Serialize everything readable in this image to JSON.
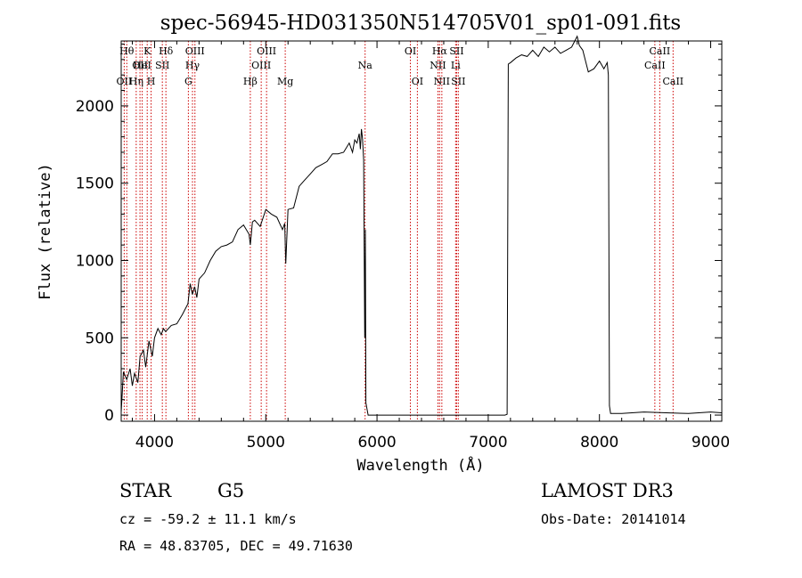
{
  "chart_data": {
    "type": "line",
    "title": "spec-56945-HD031350N514705V01_sp01-091.fits",
    "xlabel": "Wavelength (Å)",
    "ylabel": "Flux (relative)",
    "xlim": [
      3700,
      9100
    ],
    "ylim": [
      -40,
      2420
    ],
    "xticks": [
      4000,
      5000,
      6000,
      7000,
      8000,
      9000
    ],
    "yticks": [
      0,
      500,
      1000,
      1500,
      2000
    ],
    "grid": false,
    "line_color": "#cc0000",
    "series": [
      {
        "name": "flux",
        "x": [
          3700,
          3720,
          3750,
          3780,
          3800,
          3820,
          3850,
          3870,
          3900,
          3920,
          3950,
          3980,
          4000,
          4030,
          4060,
          4080,
          4100,
          4150,
          4200,
          4250,
          4300,
          4320,
          4340,
          4360,
          4380,
          4400,
          4450,
          4500,
          4550,
          4600,
          4650,
          4700,
          4750,
          4800,
          4850,
          4861,
          4880,
          4900,
          4950,
          5000,
          5050,
          5100,
          5150,
          5170,
          5180,
          5200,
          5250,
          5300,
          5350,
          5400,
          5450,
          5500,
          5550,
          5600,
          5650,
          5700,
          5750,
          5780,
          5800,
          5820,
          5840,
          5850,
          5860,
          5870,
          5880,
          5890,
          5895,
          5900,
          5920,
          5950,
          6000,
          6200,
          6500,
          6800,
          7000,
          7100,
          7150,
          7170,
          7180,
          7200,
          7250,
          7300,
          7350,
          7400,
          7450,
          7500,
          7550,
          7600,
          7650,
          7700,
          7750,
          7800,
          7820,
          7850,
          7900,
          7950,
          8000,
          8040,
          8070,
          8080,
          8090,
          8100,
          8200,
          8400,
          8600,
          8800,
          9000,
          9100
        ],
        "y": [
          20,
          280,
          230,
          300,
          190,
          270,
          210,
          380,
          420,
          310,
          480,
          380,
          500,
          560,
          520,
          560,
          540,
          580,
          590,
          650,
          720,
          850,
          780,
          830,
          760,
          880,
          920,
          1000,
          1060,
          1090,
          1100,
          1120,
          1200,
          1230,
          1170,
          1100,
          1250,
          1260,
          1220,
          1330,
          1300,
          1280,
          1200,
          1240,
          980,
          1330,
          1340,
          1480,
          1520,
          1560,
          1600,
          1620,
          1640,
          1690,
          1690,
          1700,
          1760,
          1700,
          1780,
          1760,
          1820,
          1720,
          1850,
          1790,
          1650,
          500,
          1200,
          80,
          0,
          0,
          0,
          0,
          0,
          0,
          0,
          0,
          0,
          5,
          2270,
          2280,
          2310,
          2330,
          2320,
          2360,
          2320,
          2380,
          2350,
          2380,
          2340,
          2360,
          2380,
          2450,
          2390,
          2360,
          2220,
          2240,
          2290,
          2240,
          2280,
          2200,
          60,
          10,
          10,
          20,
          15,
          10,
          20,
          15
        ]
      }
    ],
    "spectral_lines": [
      {
        "x": 3727,
        "labels": [
          "OII"
        ],
        "row": 2
      },
      {
        "x": 3750,
        "labels": [
          "Hθ"
        ],
        "row": 0
      },
      {
        "x": 3835,
        "labels": [
          "Hη"
        ],
        "row": 2
      },
      {
        "x": 3869,
        "labels": [
          "OII"
        ],
        "row": 1
      },
      {
        "x": 3889,
        "labels": [
          "HeI"
        ],
        "row": 1
      },
      {
        "x": 3934,
        "labels": [
          "K"
        ],
        "row": 0
      },
      {
        "x": 3969,
        "labels": [
          "H"
        ],
        "row": 2
      },
      {
        "x": 4070,
        "labels": [
          "SII"
        ],
        "row": 1
      },
      {
        "x": 4102,
        "labels": [
          "Hδ"
        ],
        "row": 0
      },
      {
        "x": 4304,
        "labels": [
          "G"
        ],
        "row": 2
      },
      {
        "x": 4341,
        "labels": [
          "Hγ"
        ],
        "row": 1
      },
      {
        "x": 4363,
        "labels": [
          "OIII"
        ],
        "row": 0
      },
      {
        "x": 4861,
        "labels": [
          "Hβ"
        ],
        "row": 2
      },
      {
        "x": 4959,
        "labels": [
          "OIII"
        ],
        "row": 1
      },
      {
        "x": 5007,
        "labels": [
          "OIII"
        ],
        "row": 0
      },
      {
        "x": 5175,
        "labels": [
          "Mg"
        ],
        "row": 2
      },
      {
        "x": 5893,
        "labels": [
          "Na"
        ],
        "row": 1
      },
      {
        "x": 6300,
        "labels": [
          "OI"
        ],
        "row": 0
      },
      {
        "x": 6363,
        "labels": [
          "OI"
        ],
        "row": 2
      },
      {
        "x": 6548,
        "labels": [
          "NII"
        ],
        "row": 1
      },
      {
        "x": 6563,
        "labels": [
          "Hα"
        ],
        "row": 0
      },
      {
        "x": 6583,
        "labels": [
          "NII"
        ],
        "row": 2
      },
      {
        "x": 6707,
        "labels": [
          "Li"
        ],
        "row": 1
      },
      {
        "x": 6716,
        "labels": [
          "SII"
        ],
        "row": 0
      },
      {
        "x": 6731,
        "labels": [
          "SII"
        ],
        "row": 2
      },
      {
        "x": 8498,
        "labels": [
          "CaII"
        ],
        "row": 1
      },
      {
        "x": 8542,
        "labels": [
          "CaII"
        ],
        "row": 0
      },
      {
        "x": 8662,
        "labels": [
          "CaII"
        ],
        "row": 2
      }
    ]
  },
  "info": {
    "object_class": "STAR",
    "subclass": "G5",
    "survey": "LAMOST DR3",
    "redshift": "cz = -59.2 ± 11.1 km/s",
    "obs_date": "Obs-Date: 20141014",
    "coords": "RA =  48.83705, DEC =  49.71630"
  }
}
